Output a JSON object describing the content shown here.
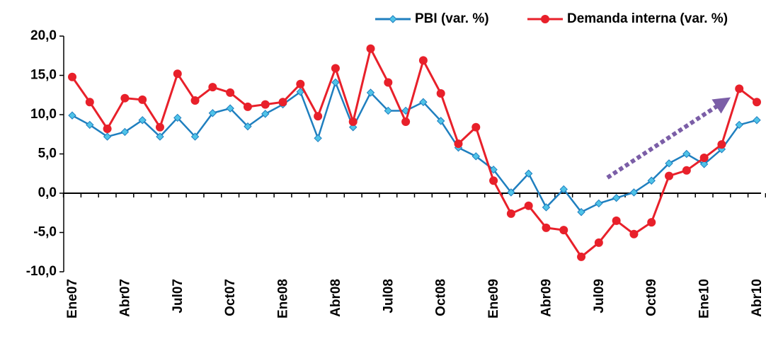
{
  "chart_data": {
    "type": "line",
    "categories": [
      "Ene07",
      null,
      null,
      "Abr07",
      null,
      null,
      "Jul07",
      null,
      null,
      "Oct07",
      null,
      null,
      "Ene08",
      null,
      null,
      "Abr08",
      null,
      null,
      "Jul08",
      null,
      null,
      "Oct08",
      null,
      null,
      "Ene09",
      null,
      null,
      "Abr09",
      null,
      null,
      "Jul09",
      null,
      null,
      "Oct09",
      null,
      null,
      "Ene10",
      null,
      null,
      "Abr10"
    ],
    "series": [
      {
        "name": "PBI (var. %)",
        "color": "#1f7fbf",
        "marker": "diamond",
        "marker_color": "#4fc3e8",
        "values": [
          9.9,
          8.7,
          7.2,
          7.8,
          9.3,
          7.2,
          9.6,
          7.2,
          10.2,
          10.8,
          8.5,
          10.1,
          11.3,
          12.9,
          7.0,
          14.1,
          8.4,
          12.8,
          10.5,
          10.5,
          11.6,
          9.2,
          5.8,
          4.7,
          3.0,
          0.1,
          2.5,
          -1.8,
          0.5,
          -2.4,
          -1.3,
          -0.6,
          0.1,
          1.6,
          3.8,
          5.0,
          3.7,
          5.6,
          8.7,
          9.3
        ]
      },
      {
        "name": "Demanda interna (var. %)",
        "color": "#e8202a",
        "marker": "circle",
        "marker_color": "#e8202a",
        "values": [
          14.8,
          11.6,
          8.2,
          12.1,
          11.9,
          8.4,
          15.2,
          11.8,
          13.5,
          12.8,
          11.0,
          11.3,
          11.6,
          13.9,
          9.8,
          15.9,
          9.1,
          18.4,
          14.1,
          9.1,
          16.9,
          12.7,
          6.3,
          8.4,
          1.6,
          -2.6,
          -1.6,
          -4.4,
          -4.7,
          -8.1,
          -6.3,
          -3.5,
          -5.2,
          -3.7,
          2.2,
          2.9,
          4.5,
          6.2,
          13.3,
          11.6
        ]
      }
    ],
    "ylim": [
      -10,
      20
    ],
    "yticks": [
      {
        "value": -10,
        "label": "-10,0"
      },
      {
        "value": -5,
        "label": "-5,0"
      },
      {
        "value": 0,
        "label": "0,0"
      },
      {
        "value": 5,
        "label": "5,0"
      },
      {
        "value": 10,
        "label": "10,0"
      },
      {
        "value": 15,
        "label": "15,0"
      },
      {
        "value": 20,
        "label": "20,0"
      }
    ],
    "grid": false,
    "legend": "top-right"
  }
}
